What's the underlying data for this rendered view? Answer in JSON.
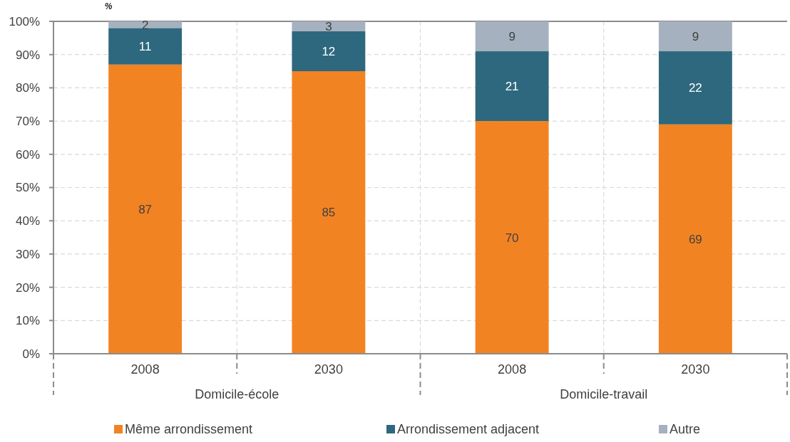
{
  "chart_data": {
    "type": "bar",
    "stacked": true,
    "ylabel": "%",
    "categories": [
      "2008",
      "2030",
      "2008",
      "2030"
    ],
    "series": [
      {
        "name": "Même arrondissement",
        "color": "#f28322",
        "values": [
          87,
          85,
          70,
          69
        ]
      },
      {
        "name": "Arrondissement adjacent",
        "color": "#2e687e",
        "values": [
          11,
          12,
          21,
          22
        ]
      },
      {
        "name": "Autre",
        "color": "#a5b1bf",
        "values": [
          2,
          3,
          9,
          9
        ]
      }
    ],
    "ylim": [
      0,
      100
    ],
    "yticks": [
      {
        "value": 0,
        "label": "0%"
      },
      {
        "value": 10,
        "label": "10%"
      },
      {
        "value": 20,
        "label": "20%"
      },
      {
        "value": 30,
        "label": "30%"
      },
      {
        "value": 40,
        "label": "40%"
      },
      {
        "value": 50,
        "label": "50%"
      },
      {
        "value": 60,
        "label": "60%"
      },
      {
        "value": 70,
        "label": "70%"
      },
      {
        "value": 80,
        "label": "80%"
      },
      {
        "value": 90,
        "label": "90%"
      },
      {
        "value": 100,
        "label": "100%"
      }
    ],
    "annotations": [
      "Domicile-école",
      "Domicile-travail"
    ],
    "grid": true,
    "legend": "bottom",
    "data_labels": true
  }
}
